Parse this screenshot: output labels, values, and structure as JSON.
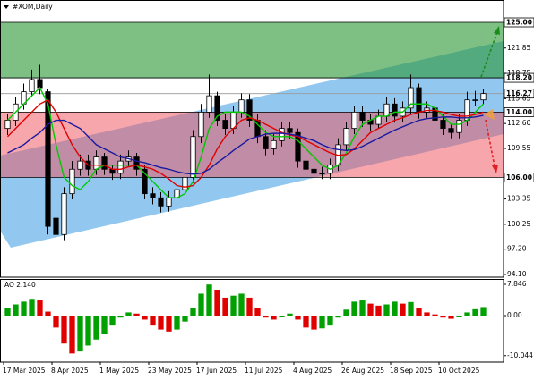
{
  "chart_data": [
    {
      "type": "candlestick",
      "title": "#XOM,Daily",
      "open": [
        112,
        113,
        115,
        116.5,
        118,
        116.5,
        101,
        99,
        104,
        107,
        108,
        107,
        108.5,
        107,
        106.5,
        108,
        108.5,
        107,
        104,
        103.5,
        102.5,
        103.5,
        104.5,
        106,
        111,
        114,
        116,
        113,
        112,
        114,
        115.5,
        113,
        111,
        109.5,
        110.5,
        112,
        111.5,
        108,
        107,
        106.5,
        106.5,
        107.5,
        110,
        112,
        114,
        113,
        112.5,
        113.5,
        115,
        113.5,
        114.5,
        117,
        114,
        114.5,
        113,
        112,
        111.5,
        113,
        115.5,
        115.5
      ],
      "high": [
        113.8,
        115.8,
        117.5,
        119.2,
        119.8,
        116.8,
        102,
        104.8,
        108,
        108.8,
        108.8,
        109.3,
        109,
        107.5,
        108.8,
        109.3,
        109,
        107.5,
        104.8,
        104.2,
        104.3,
        105.3,
        106.8,
        111.8,
        115,
        118.6,
        116.5,
        113.8,
        114.8,
        116.3,
        116.2,
        113.8,
        111.8,
        111.3,
        112.8,
        112.8,
        112,
        108.8,
        107.8,
        107.3,
        108.3,
        110.8,
        112.8,
        114.8,
        114.7,
        113.8,
        114.3,
        115.8,
        115.7,
        115.3,
        118.6,
        117.5,
        115.3,
        114.8,
        113.8,
        112.5,
        113.8,
        116.5,
        116.6,
        116.8
      ],
      "low": [
        111.2,
        112.3,
        114.3,
        115.8,
        116.2,
        99,
        97.8,
        98.3,
        103.3,
        106.2,
        106.2,
        106.3,
        106.3,
        105.7,
        105.8,
        107.3,
        106.2,
        103.3,
        102.7,
        101.7,
        101.8,
        102.8,
        103.8,
        105.3,
        110.2,
        113.3,
        112.3,
        111.2,
        111.3,
        113.3,
        112.2,
        110.2,
        108.7,
        108.8,
        109.8,
        110.7,
        107.2,
        106.2,
        105.7,
        105.8,
        105.8,
        106.8,
        109.3,
        111.3,
        112.2,
        111.7,
        112,
        112.8,
        112.7,
        112.8,
        113.8,
        113.2,
        113.3,
        112.2,
        111.2,
        110.8,
        110.8,
        112.3,
        114.7,
        115
      ],
      "close": [
        113,
        115,
        116.5,
        118,
        117,
        100,
        99,
        104,
        107,
        108,
        107,
        108.5,
        107,
        106.5,
        108,
        108.5,
        107,
        104,
        103.5,
        102.5,
        103.5,
        104.5,
        106,
        111,
        114,
        116,
        113,
        112,
        114,
        115.5,
        113,
        111,
        109.5,
        110.5,
        112,
        111.5,
        108,
        107,
        106.5,
        106.5,
        107.5,
        110,
        112,
        114,
        113,
        112.5,
        113.5,
        115,
        113.5,
        114.5,
        117,
        114,
        114.5,
        113,
        112,
        111.5,
        113,
        115.5,
        115.5,
        116.27
      ],
      "lines": [
        {
          "color": "#00c800",
          "values": [
            113,
            114,
            115,
            116,
            117,
            115,
            110,
            106,
            105,
            104.5,
            105.5,
            107,
            107.5,
            107.5,
            107.5,
            107.5,
            107.5,
            106.5,
            105.5,
            104.5,
            103.5,
            103.5,
            104,
            105.5,
            108.5,
            112,
            113.5,
            114,
            114,
            114,
            113.5,
            112.5,
            111.5,
            111,
            111,
            111,
            110.5,
            109.5,
            108.5,
            107.5,
            107,
            107.5,
            109,
            111,
            112.5,
            113,
            113.5,
            113.5,
            114,
            114,
            115,
            115,
            115,
            114.5,
            113.5,
            112.5,
            112.5,
            113,
            114,
            115
          ]
        },
        {
          "color": "#e00000",
          "values": [
            111,
            112,
            113,
            114,
            115,
            115.5,
            114,
            112,
            110,
            108.5,
            107.5,
            107.5,
            107.5,
            107,
            107,
            107.3,
            107.5,
            107.3,
            107,
            106.5,
            105.8,
            105,
            104.8,
            105,
            106,
            107.5,
            109.5,
            111,
            112,
            113,
            113.3,
            113,
            112.5,
            112,
            111.5,
            111.2,
            111,
            110.5,
            110,
            109.5,
            109,
            108.7,
            108.8,
            109.5,
            110.5,
            111.5,
            112,
            112.5,
            113,
            113.3,
            113.7,
            114,
            114.2,
            114.2,
            114,
            113.7,
            113.5,
            113.5,
            113.7,
            114
          ]
        },
        {
          "color": "#1a1aa0",
          "values": [
            109,
            109.5,
            110,
            110.8,
            111.5,
            112.5,
            113,
            113,
            112.5,
            112,
            111,
            110,
            109.5,
            109,
            108.5,
            108.3,
            108,
            107.8,
            107.5,
            107.2,
            107,
            106.7,
            106.5,
            106.4,
            106.5,
            107,
            107.8,
            108.5,
            109.3,
            110,
            110.7,
            111,
            111.3,
            111.4,
            111.4,
            111.3,
            111.1,
            110.8,
            110.5,
            110,
            109.6,
            109.4,
            109.3,
            109.4,
            109.8,
            110.3,
            110.8,
            111.3,
            111.8,
            112.2,
            112.6,
            113,
            113.2,
            113.3,
            113.4,
            113.4,
            113.3,
            113.3,
            113.4,
            113.6
          ]
        }
      ],
      "ylim": [
        93.77,
        127.74
      ],
      "yticks": [
        121.85,
        118.75,
        115.65,
        {
          "value": 112.6,
          "label": "112.60"
        },
        109.55,
        103.35,
        100.25,
        {
          "value": 97.2,
          "label": "97.20"
        },
        {
          "value": 94.1,
          "label": "94.10"
        }
      ],
      "levels": [
        {
          "value": 125,
          "label": "125.00"
        },
        {
          "value": 118.2,
          "label": "118.20"
        },
        116.27,
        {
          "value": 114,
          "label": "114.00"
        },
        {
          "value": 106,
          "label": "106.00"
        }
      ],
      "zones": [
        {
          "range": [
            118.2,
            125
          ],
          "color": "rgba(40,150,50,0.6)"
        },
        {
          "range": [
            106,
            114
          ],
          "color": "rgba(240,80,90,0.5)"
        }
      ],
      "xlim": [
        0,
        60
      ],
      "xticks": [
        {
          "value": 0,
          "label": "17 Mar 2025"
        },
        {
          "value": 6,
          "label": "8 Apr 2025"
        },
        {
          "value": 12,
          "label": "1 May 2025"
        },
        {
          "value": 18,
          "label": "23 May 2025"
        },
        {
          "value": 24,
          "label": "17 Jun 2025"
        },
        {
          "value": 30,
          "label": "11 Jul 2025"
        },
        {
          "value": 36,
          "label": "4 Aug 2025"
        },
        {
          "value": 42,
          "label": "26 Aug 2025"
        },
        {
          "value": 48,
          "label": "18 Sep 2025"
        },
        {
          "value": 54,
          "label": "10 Oct 2025"
        }
      ]
    },
    {
      "type": "bar",
      "title": "AO 2.140",
      "values": [
        2,
        2.8,
        3.5,
        4.2,
        4,
        1,
        -3,
        -7,
        -9.5,
        -9,
        -7.5,
        -6,
        -4.5,
        -2.5,
        -0.5,
        0.8,
        0.5,
        -1,
        -2.5,
        -3.5,
        -4,
        -3.5,
        -1.5,
        2,
        5.5,
        7.8,
        6.5,
        4.5,
        5,
        5.5,
        4.5,
        2,
        -0.5,
        -1,
        -0.3,
        0.5,
        -1,
        -3,
        -3.5,
        -3.2,
        -2.5,
        -0.5,
        1.5,
        3.5,
        3.8,
        3,
        2.5,
        2.8,
        3.5,
        3,
        3.4,
        2,
        0.8,
        0.3,
        -0.5,
        -0.8,
        -0.3,
        0.8,
        1.6,
        2.14
      ],
      "up_color": "#00a000",
      "down_color": "#e00000",
      "ylim": [
        -11.66,
        9.19
      ],
      "yticks": [
        7.846,
        {
          "value": 0,
          "label": "0.00"
        },
        -10.044
      ]
    }
  ]
}
